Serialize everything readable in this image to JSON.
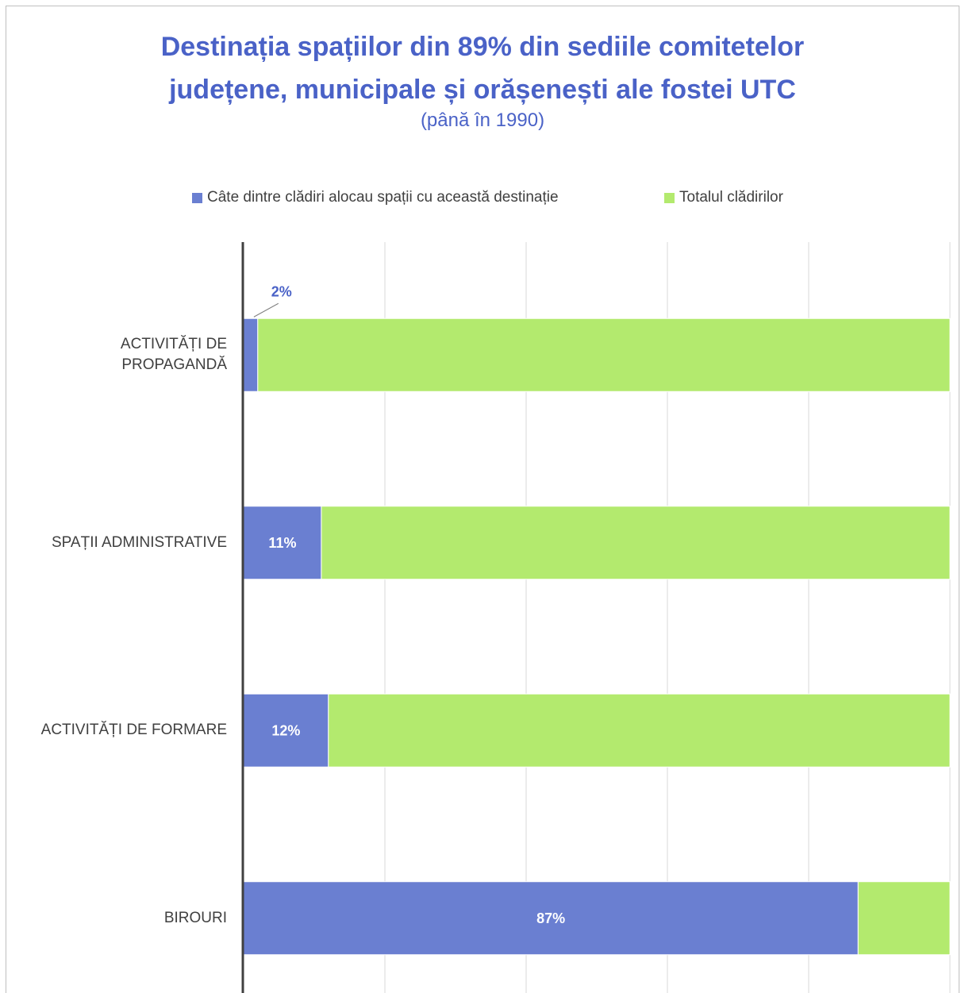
{
  "chart_data": {
    "type": "bar",
    "orientation": "horizontal",
    "stacked": true,
    "title": "Destinația spațiilor din 89% din sediile comitetelor județene, municipale și orășenești ale fostei UTC",
    "title_lines": [
      "Destinația spațiilor din 89% din sediile comitetelor",
      "județene, municipale și orășenești ale fostei UTC"
    ],
    "subtitle": "(până în 1990)",
    "categories": [
      "ACTIVITĂȚI DE PROPAGANDĂ",
      "SPAȚII ADMINISTRATIVE",
      "ACTIVITĂȚI DE FORMARE",
      "BIROURI"
    ],
    "category_lines": [
      [
        "ACTIVITĂȚI DE",
        "PROPAGANDĂ"
      ],
      [
        "SPAȚII ADMINISTRATIVE"
      ],
      [
        "ACTIVITĂȚI DE FORMARE"
      ],
      [
        "BIROURI"
      ]
    ],
    "series": [
      {
        "name": "Câte dintre clădiri alocau spații cu această destinație",
        "color": "#6a7fd1",
        "values": [
          2,
          11,
          12,
          87
        ],
        "labels": [
          "2%",
          "11%",
          "12%",
          "87%"
        ]
      },
      {
        "name": "Totalul clădirilor",
        "color": "#b3ea6e",
        "values": [
          98,
          89,
          88,
          13
        ]
      }
    ],
    "xlim": [
      0,
      100
    ],
    "grid": true,
    "legend_position": "top"
  },
  "colors": {
    "title": "#4a62c7",
    "axis": "#404040",
    "grid": "#d9d9d9",
    "label_outside": "#4a62c7",
    "label_inside": "#ffffff"
  }
}
